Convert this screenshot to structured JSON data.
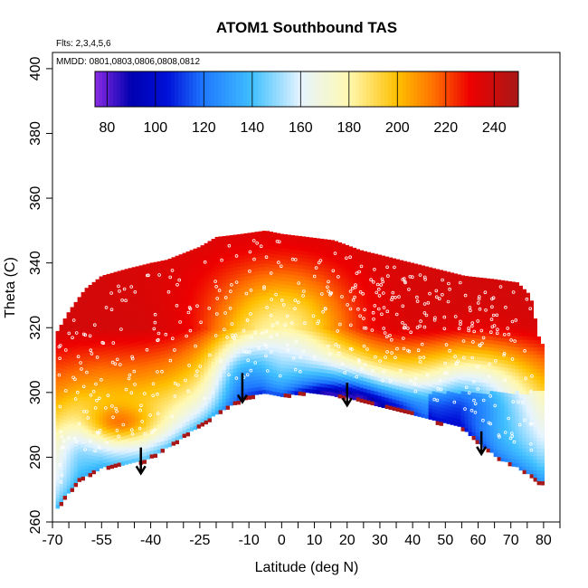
{
  "chart_data": {
    "type": "heatmap",
    "title": "ATOM1 Southbound TAS",
    "annotations": {
      "flights": "Flts: 2,3,4,5,6",
      "dates": "MMDD: 0801,0803,0806,0808,0812"
    },
    "xlabel": "Latitude (deg N)",
    "ylabel": "Theta (C)",
    "xlim": [
      -70,
      85
    ],
    "ylim": [
      260,
      405
    ],
    "x_ticks": [
      -70,
      -55,
      -40,
      -25,
      -10,
      0,
      10,
      20,
      30,
      40,
      50,
      60,
      70,
      80
    ],
    "x_tick_labels": [
      "-70",
      "-55",
      "-40",
      "-25",
      "-10",
      "0",
      "10",
      "20",
      "30",
      "40",
      "50",
      "60",
      "70",
      "80"
    ],
    "x_minor_ticks": [
      -65,
      -60,
      -50,
      -45,
      -35,
      -30,
      -20,
      -15,
      -5,
      5,
      15,
      25,
      35,
      45,
      55,
      65,
      75,
      85
    ],
    "y_ticks": [
      260,
      280,
      300,
      320,
      340,
      360,
      380,
      400
    ],
    "y_tick_labels": [
      "260",
      "280",
      "300",
      "320",
      "340",
      "360",
      "380",
      "400"
    ],
    "colorbar": {
      "min": 75,
      "max": 250,
      "ticks": [
        80,
        100,
        120,
        140,
        160,
        180,
        200,
        220,
        240
      ],
      "tick_labels": [
        "80",
        "100",
        "120",
        "140",
        "160",
        "180",
        "200",
        "220",
        "240"
      ],
      "dividers": [
        80,
        100,
        120,
        140,
        160,
        180,
        200,
        220,
        240
      ],
      "stops": [
        {
          "v": 75,
          "c": "#8a2be2"
        },
        {
          "v": 90,
          "c": "#0000b0"
        },
        {
          "v": 105,
          "c": "#0010d8"
        },
        {
          "v": 120,
          "c": "#1e78ff"
        },
        {
          "v": 140,
          "c": "#40c0ff"
        },
        {
          "v": 160,
          "c": "#e6f4ff"
        },
        {
          "v": 180,
          "c": "#fff8b0"
        },
        {
          "v": 200,
          "c": "#ffc000"
        },
        {
          "v": 215,
          "c": "#ff7000"
        },
        {
          "v": 230,
          "c": "#ee0000"
        },
        {
          "v": 250,
          "c": "#a81818"
        }
      ]
    },
    "surface_profile": [
      {
        "lat": -69,
        "theta": 264
      },
      {
        "lat": -62,
        "theta": 273
      },
      {
        "lat": -55,
        "theta": 277
      },
      {
        "lat": -48,
        "theta": 278
      },
      {
        "lat": -42,
        "theta": 279
      },
      {
        "lat": -35,
        "theta": 283
      },
      {
        "lat": -28,
        "theta": 288
      },
      {
        "lat": -22,
        "theta": 292
      },
      {
        "lat": -16,
        "theta": 296
      },
      {
        "lat": -12,
        "theta": 298
      },
      {
        "lat": -6,
        "theta": 300
      },
      {
        "lat": 0,
        "theta": 299
      },
      {
        "lat": 6,
        "theta": 300
      },
      {
        "lat": 12,
        "theta": 300
      },
      {
        "lat": 18,
        "theta": 299
      },
      {
        "lat": 24,
        "theta": 298
      },
      {
        "lat": 30,
        "theta": 296
      },
      {
        "lat": 36,
        "theta": 295
      },
      {
        "lat": 42,
        "theta": 293
      },
      {
        "lat": 48,
        "theta": 291
      },
      {
        "lat": 54,
        "theta": 290
      },
      {
        "lat": 60,
        "theta": 285
      },
      {
        "lat": 66,
        "theta": 280
      },
      {
        "lat": 72,
        "theta": 277
      },
      {
        "lat": 77,
        "theta": 274
      },
      {
        "lat": 79,
        "theta": 272
      }
    ],
    "top_profile": [
      {
        "lat": -69,
        "theta": 318
      },
      {
        "lat": -65,
        "theta": 325
      },
      {
        "lat": -60,
        "theta": 332
      },
      {
        "lat": -55,
        "theta": 336
      },
      {
        "lat": -48,
        "theta": 338
      },
      {
        "lat": -40,
        "theta": 340
      },
      {
        "lat": -35,
        "theta": 341
      },
      {
        "lat": -30,
        "theta": 343
      },
      {
        "lat": -25,
        "theta": 345
      },
      {
        "lat": -20,
        "theta": 348
      },
      {
        "lat": -12,
        "theta": 349
      },
      {
        "lat": -5,
        "theta": 350
      },
      {
        "lat": 0,
        "theta": 349
      },
      {
        "lat": 8,
        "theta": 348
      },
      {
        "lat": 16,
        "theta": 347
      },
      {
        "lat": 24,
        "theta": 344
      },
      {
        "lat": 32,
        "theta": 342
      },
      {
        "lat": 40,
        "theta": 340
      },
      {
        "lat": 48,
        "theta": 338
      },
      {
        "lat": 56,
        "theta": 336
      },
      {
        "lat": 65,
        "theta": 335
      },
      {
        "lat": 72,
        "theta": 334
      },
      {
        "lat": 76,
        "theta": 330
      },
      {
        "lat": 79,
        "theta": 315
      }
    ],
    "field_model": {
      "top_value": 238,
      "bottom_value": 140,
      "tropopause_theta": 320,
      "low_region_value": 105
    },
    "descent_arrows": [
      {
        "lat": -43,
        "theta_start": 283,
        "theta_end": 275
      },
      {
        "lat": -12,
        "theta_start": 306,
        "theta_end": 297
      },
      {
        "lat": 20,
        "theta_start": 303,
        "theta_end": 296
      },
      {
        "lat": 61,
        "theta_start": 288,
        "theta_end": 281
      }
    ]
  }
}
